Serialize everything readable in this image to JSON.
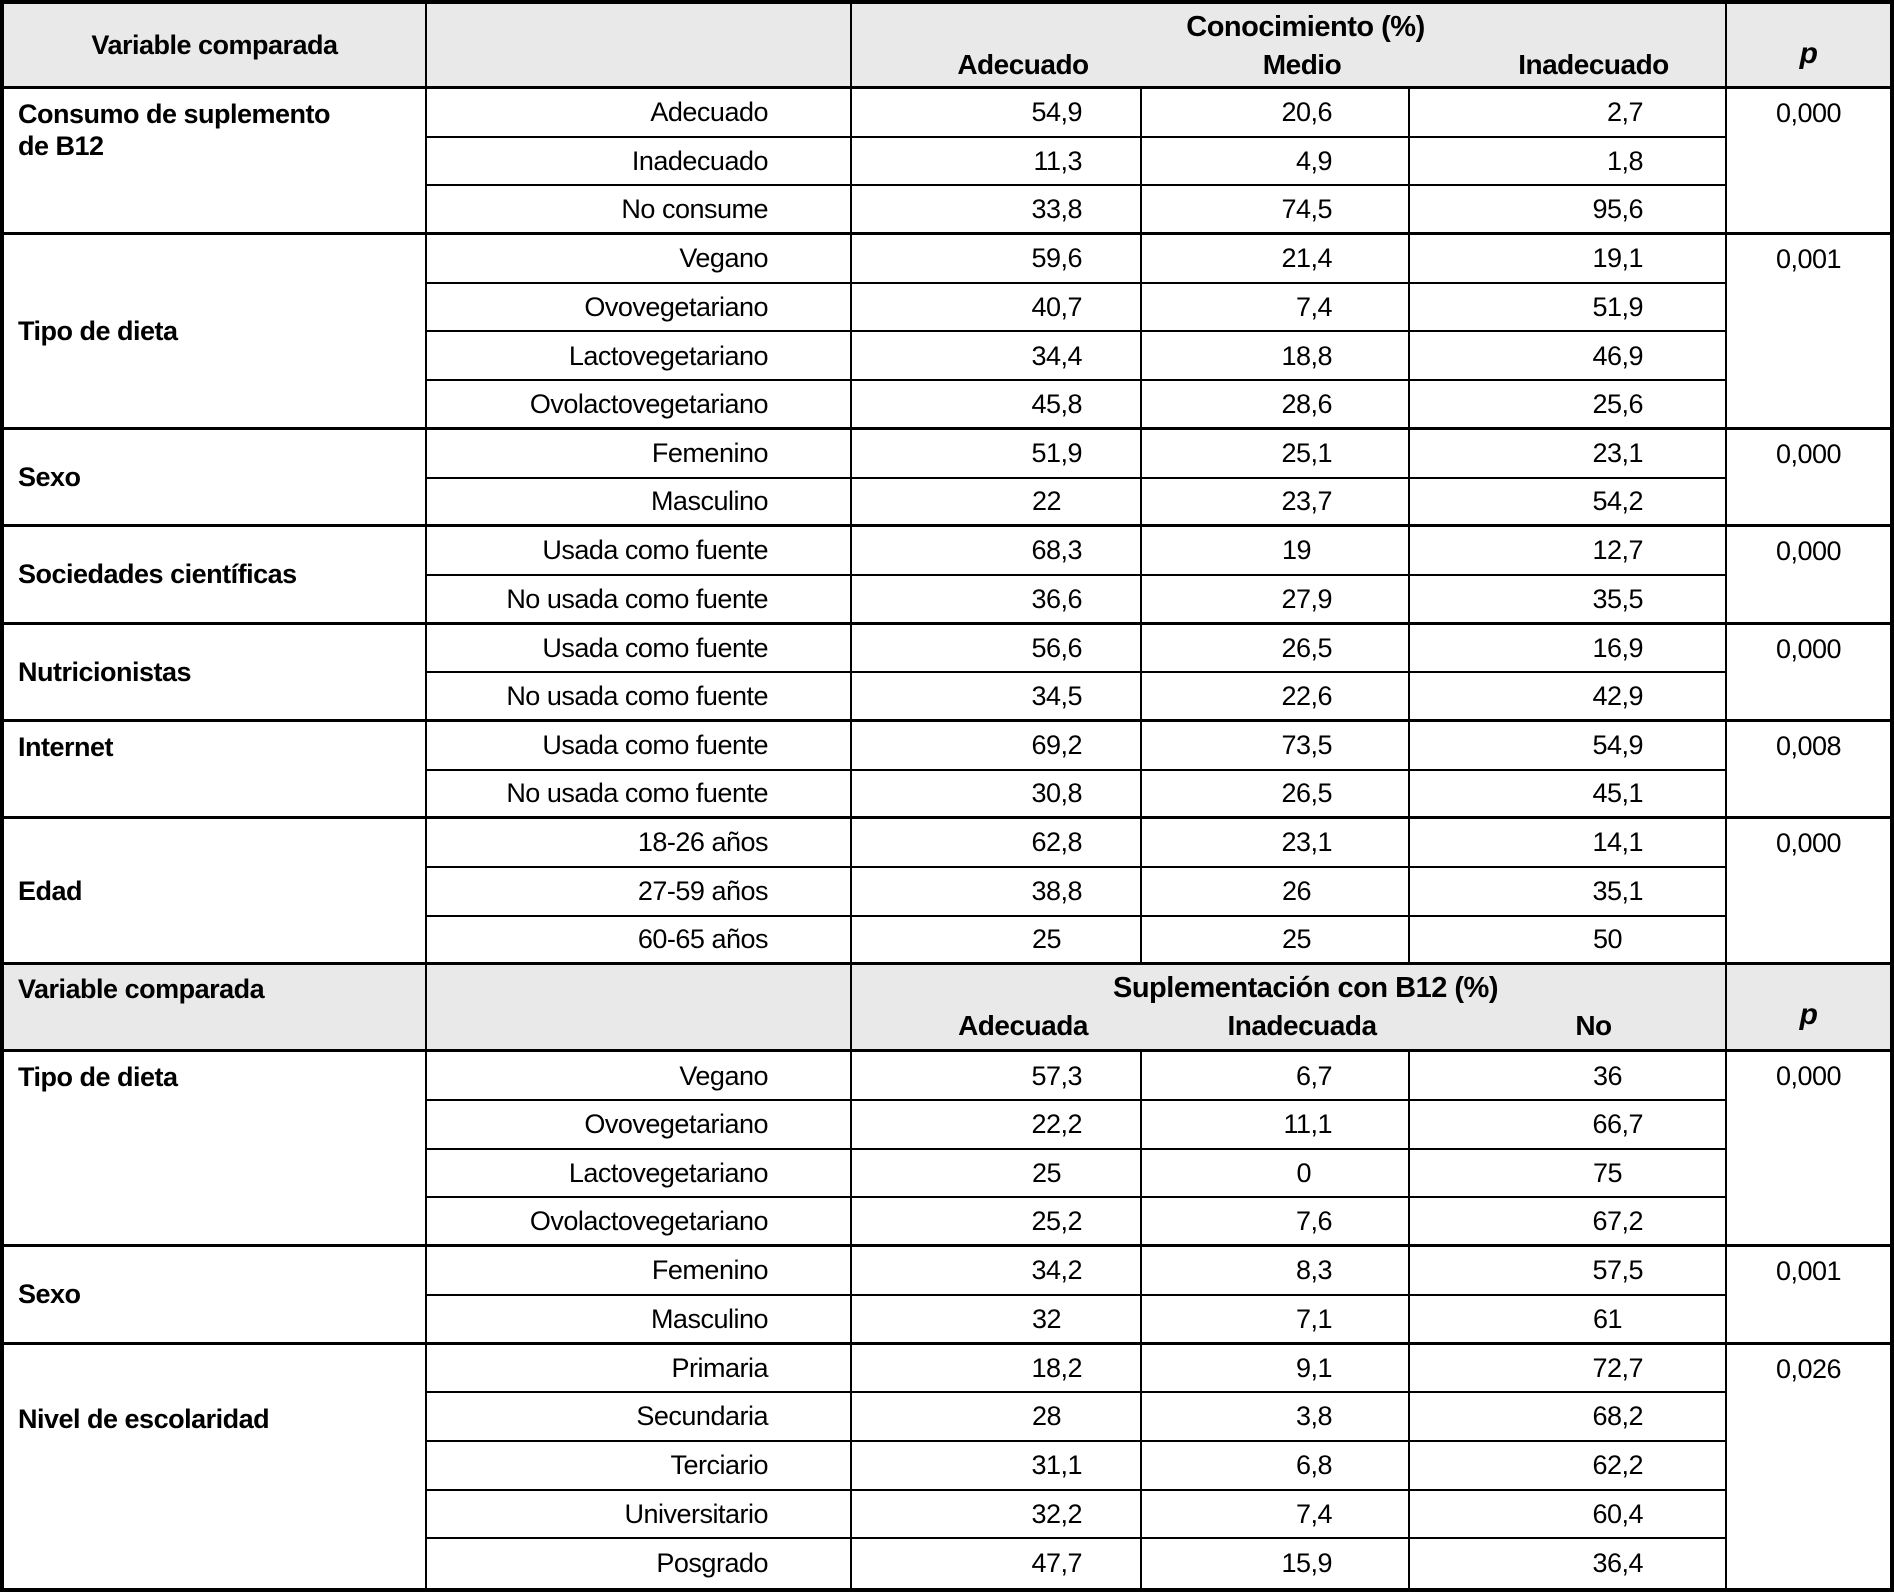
{
  "table": {
    "styles": {
      "header_bg": "#e9e9e9",
      "border_color": "#000000",
      "text_color": "#000000"
    },
    "sections": [
      {
        "header": {
          "variable": "Variable comparada",
          "group": "Conocimiento (%)",
          "columns": [
            "Adecuado",
            "Medio",
            "Inadecuado"
          ],
          "p": "p"
        },
        "groups": [
          {
            "variable": "Consumo de suplemento de B12",
            "valign": "top",
            "p": "0,000",
            "rows": [
              {
                "label": "Adecuado",
                "values": [
                  "54,9",
                  "20,6",
                  "2,7"
                ]
              },
              {
                "label": "Inadecuado",
                "values": [
                  "11,3",
                  "4,9",
                  "1,8"
                ]
              },
              {
                "label": "No consume",
                "values": [
                  "33,8",
                  "74,5",
                  "95,6"
                ]
              }
            ]
          },
          {
            "variable": "Tipo de dieta",
            "valign": "center",
            "p": "0,001",
            "rows": [
              {
                "label": "Vegano",
                "values": [
                  "59,6",
                  "21,4",
                  "19,1"
                ]
              },
              {
                "label": "Ovovegetariano",
                "values": [
                  "40,7",
                  "7,4",
                  "51,9"
                ]
              },
              {
                "label": "Lactovegetariano",
                "values": [
                  "34,4",
                  "18,8",
                  "46,9"
                ]
              },
              {
                "label": "Ovolactovegetariano",
                "values": [
                  "45,8",
                  "28,6",
                  "25,6"
                ]
              }
            ]
          },
          {
            "variable": "Sexo",
            "valign": "center",
            "p": "0,000",
            "rows": [
              {
                "label": "Femenino",
                "values": [
                  "51,9",
                  "25,1",
                  "23,1"
                ]
              },
              {
                "label": "Masculino",
                "values": [
                  "22",
                  "23,7",
                  "54,2"
                ]
              }
            ]
          },
          {
            "variable": "Sociedades científicas",
            "valign": "center",
            "p": "0,000",
            "rows": [
              {
                "label": "Usada como fuente",
                "values": [
                  "68,3",
                  "19",
                  "12,7"
                ]
              },
              {
                "label": "No usada como fuente",
                "values": [
                  "36,6",
                  "27,9",
                  "35,5"
                ]
              }
            ]
          },
          {
            "variable": "Nutricionistas",
            "valign": "center",
            "p": "0,000",
            "rows": [
              {
                "label": "Usada como fuente",
                "values": [
                  "56,6",
                  "26,5",
                  "16,9"
                ]
              },
              {
                "label": "No usada como fuente",
                "values": [
                  "34,5",
                  "22,6",
                  "42,9"
                ]
              }
            ]
          },
          {
            "variable": "Internet",
            "valign": "top",
            "p": "0,008",
            "rows": [
              {
                "label": "Usada como fuente",
                "values": [
                  "69,2",
                  "73,5",
                  "54,9"
                ]
              },
              {
                "label": "No usada como fuente",
                "values": [
                  "30,8",
                  "26,5",
                  "45,1"
                ]
              }
            ]
          },
          {
            "variable": "Edad",
            "valign": "center",
            "p": "0,000",
            "rows": [
              {
                "label": "18-26 años",
                "values": [
                  "62,8",
                  "23,1",
                  "14,1"
                ]
              },
              {
                "label": "27-59 años",
                "values": [
                  "38,8",
                  "26",
                  "35,1"
                ]
              },
              {
                "label": "60-65 años",
                "values": [
                  "25",
                  "25",
                  "50"
                ]
              }
            ]
          }
        ]
      },
      {
        "header": {
          "variable": "Variable comparada",
          "group": "Suplementación con B12 (%)",
          "columns": [
            "Adecuada",
            "Inadecuada",
            "No"
          ],
          "p": "p"
        },
        "groups": [
          {
            "variable": "Tipo de dieta",
            "valign": "top",
            "p": "0,000",
            "rows": [
              {
                "label": "Vegano",
                "values": [
                  "57,3",
                  "6,7",
                  "36"
                ]
              },
              {
                "label": "Ovovegetariano",
                "values": [
                  "22,2",
                  "11,1",
                  "66,7"
                ]
              },
              {
                "label": "Lactovegetariano",
                "values": [
                  "25",
                  "0",
                  "75"
                ]
              },
              {
                "label": "Ovolactovegetariano",
                "values": [
                  "25,2",
                  "7,6",
                  "67,2"
                ]
              }
            ]
          },
          {
            "variable": "Sexo",
            "valign": "center",
            "p": "0,001",
            "rows": [
              {
                "label": "Femenino",
                "values": [
                  "34,2",
                  "8,3",
                  "57,5"
                ]
              },
              {
                "label": "Masculino",
                "values": [
                  "32",
                  "7,1",
                  "61"
                ]
              }
            ]
          },
          {
            "variable": "Nivel de escolaridad",
            "valign": "upper",
            "p": "0,026",
            "rows": [
              {
                "label": "Primaria",
                "values": [
                  "18,2",
                  "9,1",
                  "72,7"
                ]
              },
              {
                "label": "Secundaria",
                "values": [
                  "28",
                  "3,8",
                  "68,2"
                ]
              },
              {
                "label": "Terciario",
                "values": [
                  "31,1",
                  "6,8",
                  "62,2"
                ]
              },
              {
                "label": "Universitario",
                "values": [
                  "32,2",
                  "7,4",
                  "60,4"
                ]
              },
              {
                "label": "Posgrado",
                "values": [
                  "47,7",
                  "15,9",
                  "36,4"
                ]
              }
            ]
          }
        ]
      }
    ]
  }
}
